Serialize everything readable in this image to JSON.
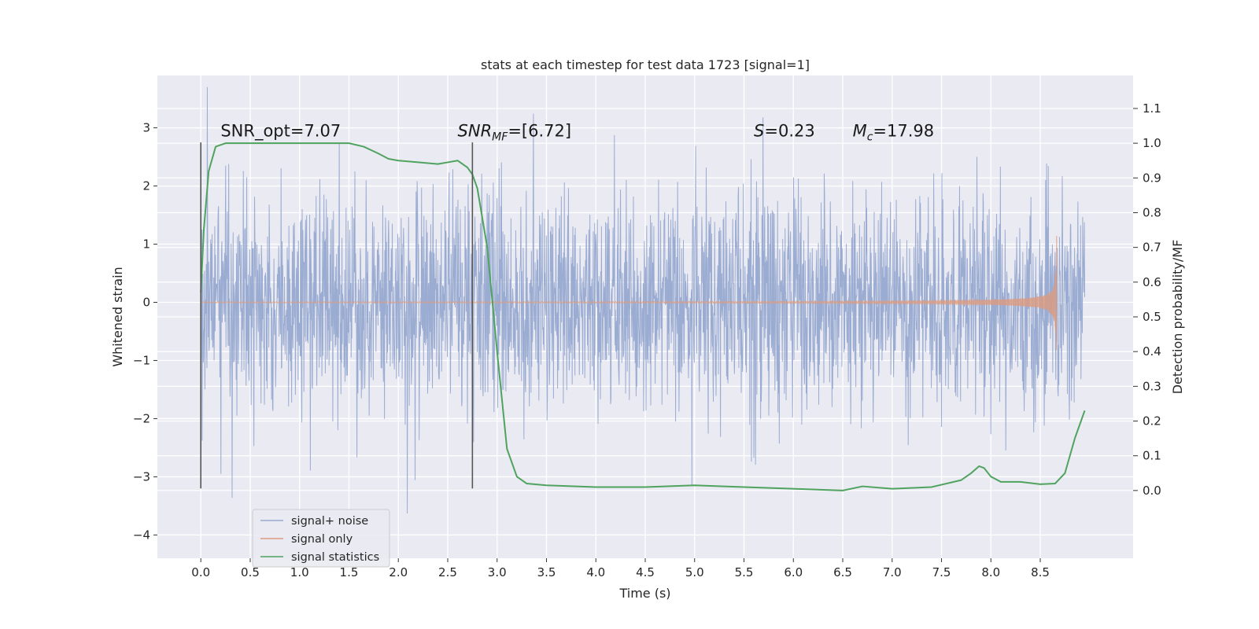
{
  "chart_data": {
    "type": "line",
    "title": "stats at each timestep for test data 1723 [signal=1]",
    "xlabel": "Time (s)",
    "ylabel": "Whitened strain",
    "y2label": "Detection probability/MF",
    "xlim": [
      -0.44,
      9.44
    ],
    "ylim": [
      -4.4,
      3.9
    ],
    "y2lim": [
      -0.195,
      1.195
    ],
    "grid": true,
    "legend_position": "lower-left",
    "x_ticks": [
      0.0,
      0.5,
      1.0,
      1.5,
      2.0,
      2.5,
      3.0,
      3.5,
      4.0,
      4.5,
      5.0,
      5.5,
      6.0,
      6.5,
      7.0,
      7.5,
      8.0,
      8.5
    ],
    "x_tick_labels": [
      "0.0",
      "0.5",
      "1.0",
      "1.5",
      "2.0",
      "2.5",
      "3.0",
      "3.5",
      "4.0",
      "4.5",
      "5.0",
      "5.5",
      "6.0",
      "6.5",
      "7.0",
      "7.5",
      "8.0",
      "8.5"
    ],
    "y_ticks": [
      3,
      2,
      1,
      0,
      -1,
      -2,
      -3,
      -4
    ],
    "y_tick_labels": [
      "3",
      "2",
      "1",
      "0",
      "−1",
      "−2",
      "−3",
      "−4"
    ],
    "y2_ticks": [
      1.1,
      1.0,
      0.9,
      0.8,
      0.7,
      0.6,
      0.5,
      0.4,
      0.3,
      0.2,
      0.1,
      0.0
    ],
    "y2_tick_labels": [
      "1.1",
      "1.0",
      "0.9",
      "0.8",
      "0.7",
      "0.6",
      "0.5",
      "0.4",
      "0.3",
      "0.2",
      "0.1",
      "0.0"
    ],
    "vertical_lines": [
      {
        "x": 0.0,
        "ymin": -3.2,
        "ymax": 2.75
      },
      {
        "x": 2.75,
        "ymin": -3.2,
        "ymax": 2.75
      }
    ],
    "annotations": [
      {
        "key": "snr_opt",
        "x": 0.2,
        "y": 2.85,
        "text": "SNR_opt=7.07"
      },
      {
        "key": "snr_mf",
        "x": 2.6,
        "y": 2.85,
        "prefix": "SNR",
        "sub": "MF",
        "suffix": "=[6.72]"
      },
      {
        "key": "s",
        "x": 5.6,
        "y": 2.85,
        "prefix": "S",
        "sub": "",
        "suffix": "=0.23"
      },
      {
        "key": "mc",
        "x": 6.6,
        "y": 2.85,
        "prefix": "M",
        "sub": "c",
        "suffix": "=17.98"
      }
    ],
    "series": [
      {
        "name": "signal+ noise",
        "color": "#97a9d0",
        "axis": "left",
        "kind": "noise",
        "x_range": [
          0.0,
          8.95
        ],
        "sigma": 0.95,
        "samples": 2600
      },
      {
        "name": "signal only",
        "color": "#dd9b7e",
        "axis": "left",
        "kind": "chirp",
        "x_range": [
          0.0,
          8.67
        ],
        "peak_amplitude": 1.45,
        "coalescence_time": 8.67
      },
      {
        "name": "signal statistics",
        "color": "#4fa35e",
        "axis": "right",
        "kind": "line",
        "x": [
          0.0,
          0.03,
          0.08,
          0.15,
          0.25,
          0.4,
          0.6,
          0.8,
          1.0,
          1.2,
          1.5,
          1.65,
          1.8,
          1.9,
          2.0,
          2.2,
          2.4,
          2.5,
          2.6,
          2.7,
          2.75,
          2.8,
          2.9,
          3.0,
          3.1,
          3.2,
          3.3,
          3.5,
          4.0,
          4.5,
          5.0,
          5.5,
          6.0,
          6.5,
          6.7,
          7.0,
          7.4,
          7.7,
          7.8,
          7.88,
          7.93,
          8.0,
          8.1,
          8.3,
          8.5,
          8.65,
          8.75,
          8.85,
          8.95
        ],
        "y": [
          0.57,
          0.75,
          0.92,
          0.99,
          1.0,
          1.0,
          1.0,
          1.0,
          1.0,
          1.0,
          1.0,
          0.99,
          0.97,
          0.955,
          0.95,
          0.945,
          0.94,
          0.945,
          0.95,
          0.93,
          0.91,
          0.87,
          0.7,
          0.4,
          0.12,
          0.04,
          0.02,
          0.015,
          0.01,
          0.01,
          0.015,
          0.01,
          0.005,
          0.0,
          0.012,
          0.005,
          0.01,
          0.03,
          0.05,
          0.07,
          0.065,
          0.04,
          0.025,
          0.025,
          0.018,
          0.02,
          0.05,
          0.15,
          0.23
        ]
      }
    ]
  }
}
